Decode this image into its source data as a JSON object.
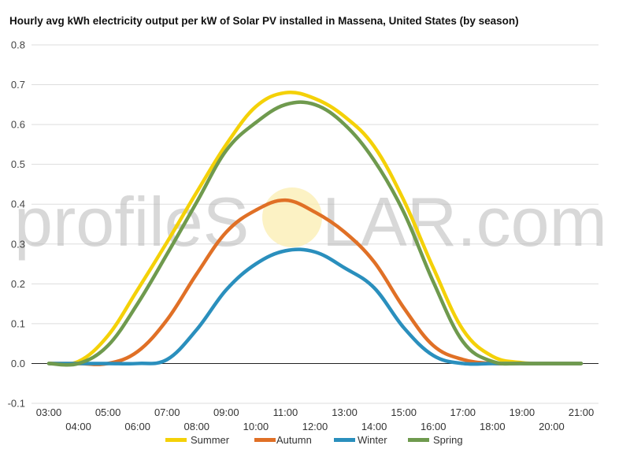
{
  "chart_data": {
    "type": "line",
    "title": "Hourly avg kWh electricity output per kW of Solar PV installed in Massena, United States (by season)",
    "xlabel": "",
    "ylabel": "",
    "ylim": [
      -0.1,
      0.8
    ],
    "yticks": [
      "0.8",
      "0.7",
      "0.6",
      "0.5",
      "0.4",
      "0.3",
      "0.2",
      "0.1",
      "0.0",
      "-0.1"
    ],
    "yticks_values": [
      0.8,
      0.7,
      0.6,
      0.5,
      0.4,
      0.3,
      0.2,
      0.1,
      0.0,
      -0.1
    ],
    "x": [
      "03:00",
      "04:00",
      "05:00",
      "06:00",
      "07:00",
      "08:00",
      "09:00",
      "10:00",
      "11:00",
      "12:00",
      "13:00",
      "14:00",
      "15:00",
      "16:00",
      "17:00",
      "18:00",
      "19:00",
      "20:00",
      "21:00"
    ],
    "grid": true,
    "legend_position": "bottom",
    "series": [
      {
        "name": "Summer",
        "color": "#f4d108",
        "values": [
          0,
          0.005,
          0.07,
          0.185,
          0.305,
          0.43,
          0.55,
          0.645,
          0.68,
          0.665,
          0.62,
          0.545,
          0.41,
          0.24,
          0.085,
          0.018,
          0.002,
          0,
          0
        ]
      },
      {
        "name": "Autumn",
        "color": "#e07026",
        "values": [
          0,
          0,
          0,
          0.03,
          0.11,
          0.225,
          0.33,
          0.385,
          0.41,
          0.38,
          0.33,
          0.255,
          0.14,
          0.045,
          0.01,
          0,
          0,
          0,
          0
        ]
      },
      {
        "name": "Winter",
        "color": "#2a8fbd",
        "values": [
          0,
          0,
          0,
          0,
          0.01,
          0.085,
          0.185,
          0.25,
          0.283,
          0.28,
          0.24,
          0.19,
          0.09,
          0.02,
          0,
          0,
          0,
          0,
          0
        ]
      },
      {
        "name": "Spring",
        "color": "#6f9a4e",
        "values": [
          0,
          0,
          0.045,
          0.15,
          0.275,
          0.405,
          0.535,
          0.605,
          0.65,
          0.65,
          0.6,
          0.51,
          0.38,
          0.205,
          0.055,
          0.005,
          0,
          0,
          0
        ]
      }
    ]
  },
  "watermark": {
    "left": "profileS",
    "right": "LAR.com"
  }
}
